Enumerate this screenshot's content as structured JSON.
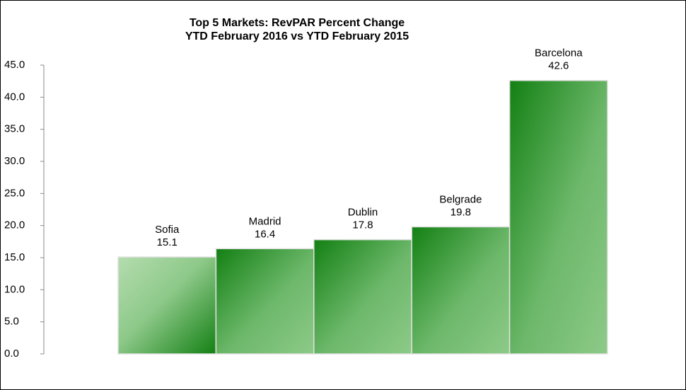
{
  "chart_data": {
    "type": "bar",
    "title": "Top 5 Markets: RevPAR Percent Change",
    "subtitle": "YTD February 2016 vs YTD February 2015",
    "categories": [
      "Sofia",
      "Madrid",
      "Dublin",
      "Belgrade",
      "Barcelona"
    ],
    "values": [
      15.1,
      16.4,
      17.8,
      19.8,
      42.6
    ],
    "color": "#138013",
    "ylim": [
      0,
      45
    ],
    "yticks": [
      {
        "value": 0,
        "label": "0.0"
      },
      {
        "value": 5,
        "label": "5.0"
      },
      {
        "value": 10,
        "label": "10.0"
      },
      {
        "value": 15,
        "label": "15.0"
      },
      {
        "value": 20,
        "label": "20.0"
      },
      {
        "value": 25,
        "label": "25.0"
      },
      {
        "value": 30,
        "label": "30.0"
      },
      {
        "value": 35,
        "label": "35.0"
      },
      {
        "value": 40,
        "label": "40.0"
      },
      {
        "value": 45,
        "label": "45.0"
      }
    ]
  }
}
